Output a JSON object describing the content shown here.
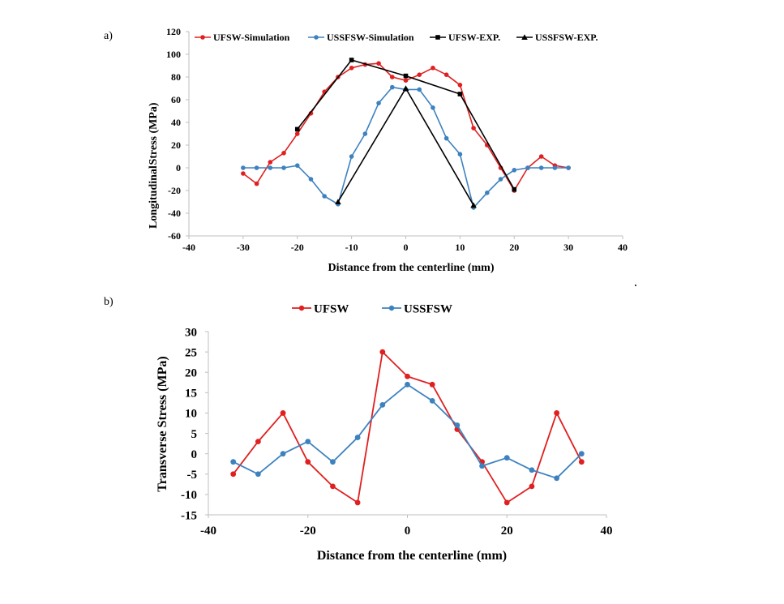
{
  "chart_data": [
    {
      "panel": "a)",
      "type": "line",
      "xlabel": "Distance from the centerline (mm)",
      "ylabel_parts": [
        "Longitudinal",
        "Stress (MPa)"
      ],
      "xlim": [
        -40,
        40
      ],
      "ylim": [
        -60,
        120
      ],
      "xticks": [
        -40,
        -30,
        -20,
        -10,
        0,
        10,
        20,
        30,
        40
      ],
      "yticks": [
        -60,
        -40,
        -20,
        0,
        20,
        40,
        60,
        80,
        100,
        120
      ],
      "grid": false,
      "legend_position": "top",
      "colors": {
        "red": "#e02020",
        "blue": "#3d82bf",
        "black": "#000000"
      },
      "series": [
        {
          "name": "UFSW-Simulation",
          "color": "#e02020",
          "marker": "circle",
          "x": [
            -30,
            -27.5,
            -25,
            -22.5,
            -20,
            -17.5,
            -15,
            -12.5,
            -10,
            -7.5,
            -5,
            -2.5,
            0,
            2.5,
            5,
            7.5,
            10,
            12.5,
            15,
            17.5,
            20,
            22.5,
            25,
            27.5,
            30
          ],
          "y": [
            -5,
            -14,
            5,
            13,
            30,
            48,
            67,
            80,
            88,
            91,
            92,
            80,
            77,
            82,
            88,
            82,
            73,
            35,
            20,
            0,
            -20,
            0,
            10,
            2,
            0
          ]
        },
        {
          "name": "USSFSW-Simulation",
          "color": "#3d82bf",
          "marker": "circle",
          "x": [
            -30,
            -27.5,
            -25,
            -22.5,
            -20,
            -17.5,
            -15,
            -12.5,
            -10,
            -7.5,
            -5,
            -2.5,
            0,
            2.5,
            5,
            7.5,
            10,
            12.5,
            15,
            17.5,
            20,
            22.5,
            25,
            27.5,
            30
          ],
          "y": [
            0,
            0,
            0,
            0,
            2,
            -10,
            -25,
            -32,
            10,
            30,
            57,
            71,
            69,
            69,
            53,
            26,
            12,
            -35,
            -22,
            -10,
            -2,
            0,
            0,
            0,
            0
          ]
        },
        {
          "name": "UFSW-EXP.",
          "color": "#000000",
          "marker": "square",
          "x": [
            -20,
            -10,
            0,
            10,
            20
          ],
          "y": [
            34,
            95,
            81,
            65,
            -19
          ]
        },
        {
          "name": "USSFSW-EXP.",
          "color": "#000000",
          "marker": "triangle",
          "x": [
            -12.5,
            0,
            12.5
          ],
          "y": [
            -30,
            70,
            -33
          ]
        }
      ]
    },
    {
      "panel": "b)",
      "type": "line",
      "xlabel": "Distance from the centerline (mm)",
      "ylabel": "Transverse Stress (MPa)",
      "xlim": [
        -40,
        40
      ],
      "ylim": [
        -15,
        30
      ],
      "xticks": [
        -40,
        -20,
        0,
        20,
        40
      ],
      "yticks": [
        -15,
        -10,
        -5,
        0,
        5,
        10,
        15,
        20,
        25,
        30
      ],
      "grid": false,
      "legend_position": "top",
      "series": [
        {
          "name": "UFSW",
          "color": "#e02020",
          "marker": "circle",
          "x": [
            -35,
            -30,
            -25,
            -20,
            -15,
            -10,
            -5,
            0,
            5,
            10,
            15,
            20,
            25,
            30,
            35
          ],
          "y": [
            -5,
            3,
            10,
            -2,
            -8,
            -12,
            25,
            19,
            17,
            6,
            -2,
            -12,
            -8,
            10,
            -2
          ]
        },
        {
          "name": "USSFSW",
          "color": "#3d82bf",
          "marker": "circle",
          "x": [
            -35,
            -30,
            -25,
            -20,
            -15,
            -10,
            -5,
            0,
            5,
            10,
            15,
            20,
            25,
            30,
            35
          ],
          "y": [
            -2,
            -5,
            0,
            3,
            -2,
            4,
            12,
            17,
            13,
            7,
            -3,
            -1,
            -4,
            -6,
            0
          ]
        }
      ]
    }
  ]
}
